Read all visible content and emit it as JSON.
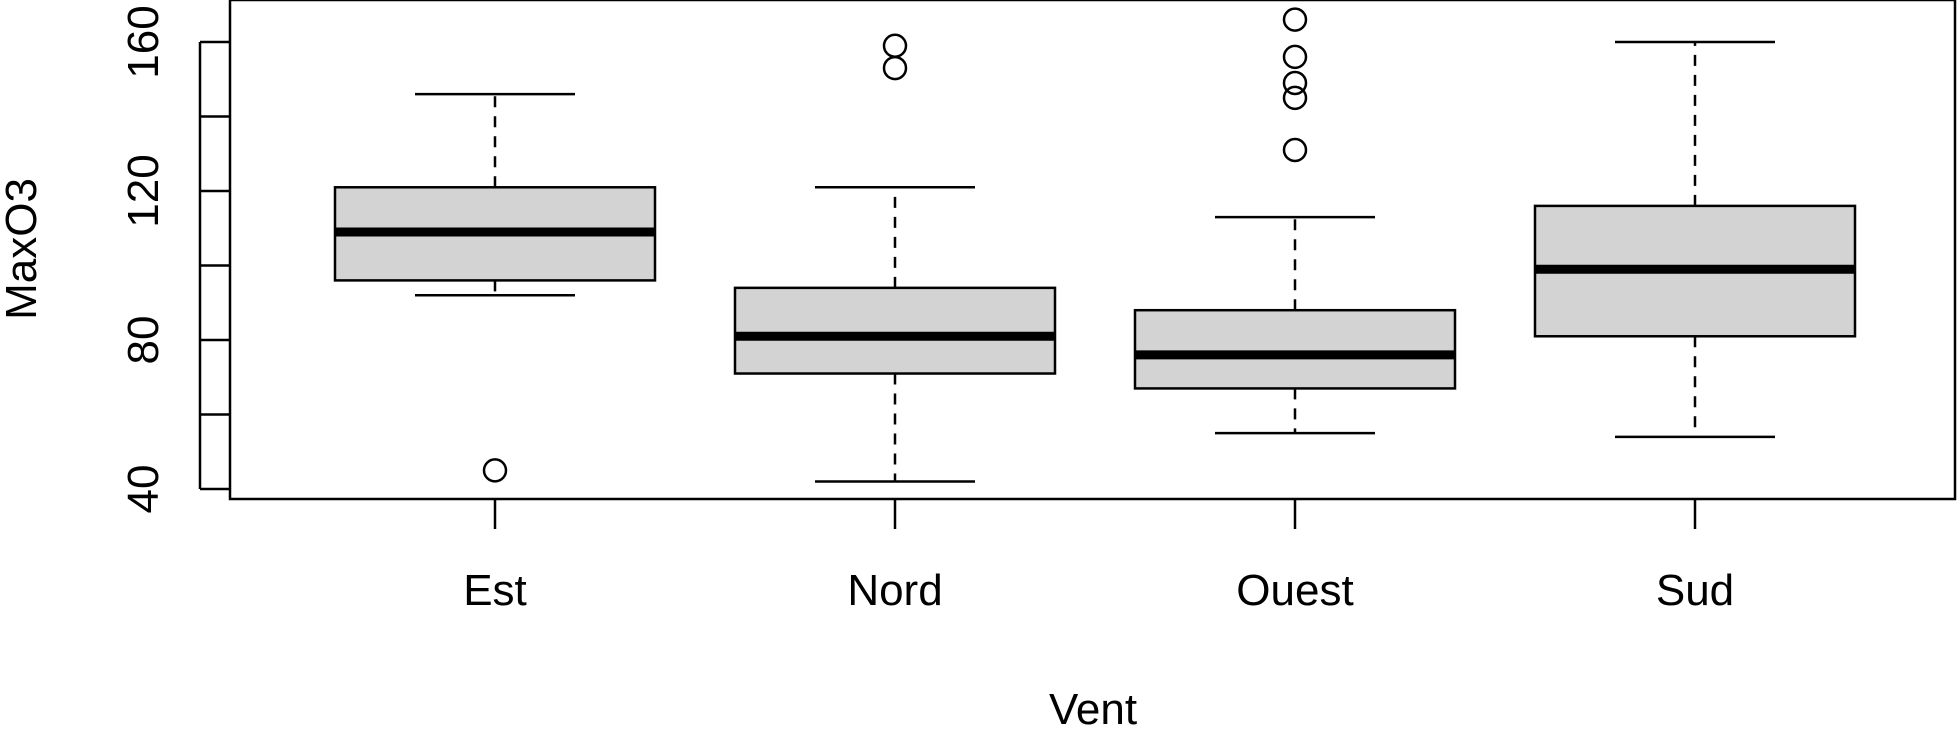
{
  "chart_data": {
    "type": "boxplot",
    "title": "",
    "xlabel": "Vent",
    "ylabel": "MaxO3",
    "ylim": [
      37,
      170
    ],
    "yticks": [
      40,
      60,
      80,
      100,
      120,
      140,
      160
    ],
    "ytick_labels": [
      "40",
      "80",
      "120",
      "160"
    ],
    "grid": false,
    "categories": [
      "Est",
      "Nord",
      "Ouest",
      "Sud"
    ],
    "boxes": [
      {
        "category": "Est",
        "whisker_low": 92,
        "q1": 96,
        "median": 109,
        "q3": 121,
        "whisker_high": 146,
        "outliers": [
          45
        ]
      },
      {
        "category": "Nord",
        "whisker_low": 42,
        "q1": 71,
        "median": 81,
        "q3": 94,
        "whisker_high": 121,
        "outliers": [
          153,
          159
        ]
      },
      {
        "category": "Ouest",
        "whisker_low": 55,
        "q1": 67,
        "median": 76,
        "q3": 88,
        "whisker_high": 113,
        "outliers": [
          131,
          145,
          149,
          156,
          166
        ]
      },
      {
        "category": "Sud",
        "whisker_low": 54,
        "q1": 81,
        "median": 99,
        "q3": 116,
        "whisker_high": 160,
        "outliers": []
      }
    ],
    "colors": {
      "box_fill": "#d3d3d3",
      "stroke": "#000000",
      "background": "#ffffff"
    }
  }
}
